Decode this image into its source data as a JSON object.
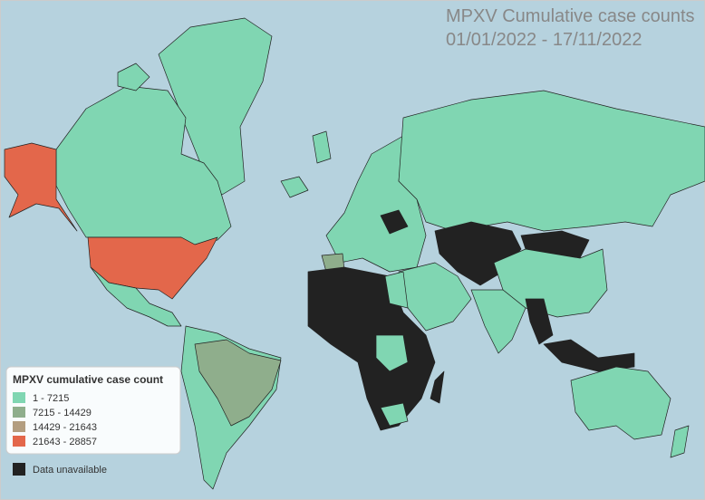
{
  "title": "MPXV Cumulative case counts",
  "subtitle": "01/01/2022 - 17/11/2022",
  "legend": {
    "title": "MPXV cumulative case count",
    "items": [
      {
        "label": "1 - 7215",
        "color": "#80d6b2"
      },
      {
        "label": "7215 - 14429",
        "color": "#8fae8c"
      },
      {
        "label": "14429 - 21643",
        "color": "#b39e80"
      },
      {
        "label": "21643 - 28857",
        "color": "#e3674b"
      }
    ],
    "unavailable": {
      "label": "Data unavailable",
      "color": "#222222"
    }
  }
}
